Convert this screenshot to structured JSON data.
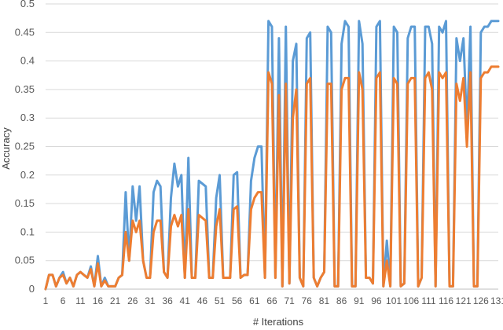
{
  "chart_data": {
    "type": "line",
    "title": "",
    "xlabel": "# Iterations",
    "ylabel": "Accuracy",
    "xlim": [
      1,
      131
    ],
    "ylim": [
      0,
      0.5
    ],
    "ytick_labels": [
      "0",
      "0.05",
      "0.1",
      "0.15",
      "0.2",
      "0.25",
      "0.3",
      "0.35",
      "0.4",
      "0.45",
      "0.5"
    ],
    "xtick_labels": [
      "1",
      "6",
      "11",
      "16",
      "21",
      "26",
      "31",
      "36",
      "41",
      "46",
      "51",
      "56",
      "61",
      "66",
      "71",
      "76",
      "81",
      "86",
      "91",
      "96",
      "101",
      "106",
      "111",
      "116",
      "121",
      "126",
      "131"
    ],
    "grid": "horizontal",
    "legend": "none",
    "series": [
      {
        "color": "#5B9BD5",
        "x": [
          1,
          2,
          3,
          4,
          5,
          6,
          7,
          8,
          9,
          10,
          11,
          12,
          13,
          14,
          15,
          16,
          17,
          18,
          19,
          20,
          21,
          22,
          23,
          24,
          25,
          26,
          27,
          28,
          29,
          30,
          31,
          32,
          33,
          34,
          35,
          36,
          37,
          38,
          39,
          40,
          41,
          42,
          43,
          44,
          45,
          46,
          47,
          48,
          49,
          50,
          51,
          52,
          53,
          54,
          55,
          56,
          57,
          58,
          59,
          60,
          61,
          62,
          63,
          64,
          65,
          66,
          67,
          68,
          69,
          70,
          71,
          72,
          73,
          74,
          75,
          76,
          77,
          78,
          79,
          80,
          81,
          82,
          83,
          84,
          85,
          86,
          87,
          88,
          89,
          90,
          91,
          92,
          93,
          94,
          95,
          96,
          97,
          98,
          99,
          100,
          101,
          102,
          103,
          104,
          105,
          106,
          107,
          108,
          109,
          110,
          111,
          112,
          113,
          114,
          115,
          116,
          117,
          118,
          119,
          120,
          121,
          122,
          123,
          124,
          125,
          126,
          127,
          128,
          129,
          130,
          131
        ],
        "values": [
          0.0,
          0.025,
          0.025,
          0.005,
          0.02,
          0.03,
          0.01,
          0.02,
          0.005,
          0.025,
          0.03,
          0.025,
          0.02,
          0.04,
          0.005,
          0.058,
          0.005,
          0.02,
          0.005,
          0.005,
          0.005,
          0.02,
          0.025,
          0.17,
          0.05,
          0.18,
          0.12,
          0.18,
          0.05,
          0.02,
          0.02,
          0.17,
          0.19,
          0.18,
          0.03,
          0.02,
          0.16,
          0.22,
          0.18,
          0.2,
          0.02,
          0.23,
          0.02,
          0.02,
          0.19,
          0.185,
          0.18,
          0.02,
          0.02,
          0.16,
          0.2,
          0.02,
          0.02,
          0.02,
          0.2,
          0.205,
          0.02,
          0.025,
          0.025,
          0.19,
          0.23,
          0.25,
          0.25,
          0.02,
          0.47,
          0.46,
          0.02,
          0.44,
          0.005,
          0.46,
          0.01,
          0.4,
          0.43,
          0.02,
          0.005,
          0.44,
          0.45,
          0.02,
          0.005,
          0.02,
          0.03,
          0.46,
          0.45,
          0.005,
          0.005,
          0.43,
          0.47,
          0.46,
          0.005,
          0.005,
          0.47,
          0.43,
          0.02,
          0.02,
          0.01,
          0.46,
          0.47,
          0.005,
          0.085,
          0.005,
          0.46,
          0.45,
          0.005,
          0.01,
          0.44,
          0.46,
          0.46,
          0.005,
          0.02,
          0.46,
          0.46,
          0.43,
          0.005,
          0.46,
          0.45,
          0.47,
          0.005,
          0.005,
          0.44,
          0.4,
          0.44,
          0.28,
          0.46,
          0.005,
          0.005,
          0.45,
          0.46,
          0.46,
          0.47,
          0.47,
          0.47
        ]
      },
      {
        "color": "#ED7D31",
        "x": [
          1,
          2,
          3,
          4,
          5,
          6,
          7,
          8,
          9,
          10,
          11,
          12,
          13,
          14,
          15,
          16,
          17,
          18,
          19,
          20,
          21,
          22,
          23,
          24,
          25,
          26,
          27,
          28,
          29,
          30,
          31,
          32,
          33,
          34,
          35,
          36,
          37,
          38,
          39,
          40,
          41,
          42,
          43,
          44,
          45,
          46,
          47,
          48,
          49,
          50,
          51,
          52,
          53,
          54,
          55,
          56,
          57,
          58,
          59,
          60,
          61,
          62,
          63,
          64,
          65,
          66,
          67,
          68,
          69,
          70,
          71,
          72,
          73,
          74,
          75,
          76,
          77,
          78,
          79,
          80,
          81,
          82,
          83,
          84,
          85,
          86,
          87,
          88,
          89,
          90,
          91,
          92,
          93,
          94,
          95,
          96,
          97,
          98,
          99,
          100,
          101,
          102,
          103,
          104,
          105,
          106,
          107,
          108,
          109,
          110,
          111,
          112,
          113,
          114,
          115,
          116,
          117,
          118,
          119,
          120,
          121,
          122,
          123,
          124,
          125,
          126,
          127,
          128,
          129,
          130,
          131
        ],
        "values": [
          0.0,
          0.025,
          0.025,
          0.005,
          0.02,
          0.025,
          0.01,
          0.02,
          0.005,
          0.025,
          0.03,
          0.025,
          0.02,
          0.035,
          0.005,
          0.045,
          0.005,
          0.015,
          0.005,
          0.005,
          0.005,
          0.02,
          0.025,
          0.1,
          0.05,
          0.12,
          0.1,
          0.12,
          0.05,
          0.02,
          0.02,
          0.1,
          0.12,
          0.12,
          0.03,
          0.02,
          0.11,
          0.13,
          0.11,
          0.13,
          0.02,
          0.14,
          0.02,
          0.02,
          0.13,
          0.125,
          0.12,
          0.02,
          0.02,
          0.11,
          0.14,
          0.02,
          0.02,
          0.02,
          0.14,
          0.145,
          0.02,
          0.025,
          0.025,
          0.14,
          0.16,
          0.17,
          0.17,
          0.02,
          0.38,
          0.36,
          0.02,
          0.34,
          0.005,
          0.36,
          0.01,
          0.3,
          0.35,
          0.02,
          0.005,
          0.36,
          0.37,
          0.02,
          0.005,
          0.02,
          0.03,
          0.36,
          0.36,
          0.005,
          0.005,
          0.35,
          0.37,
          0.37,
          0.005,
          0.005,
          0.38,
          0.35,
          0.02,
          0.02,
          0.01,
          0.37,
          0.38,
          0.005,
          0.05,
          0.005,
          0.37,
          0.36,
          0.005,
          0.01,
          0.36,
          0.37,
          0.37,
          0.005,
          0.02,
          0.37,
          0.38,
          0.35,
          0.005,
          0.38,
          0.37,
          0.38,
          0.005,
          0.005,
          0.36,
          0.33,
          0.37,
          0.25,
          0.38,
          0.005,
          0.005,
          0.37,
          0.38,
          0.38,
          0.39,
          0.39,
          0.39
        ]
      }
    ]
  }
}
